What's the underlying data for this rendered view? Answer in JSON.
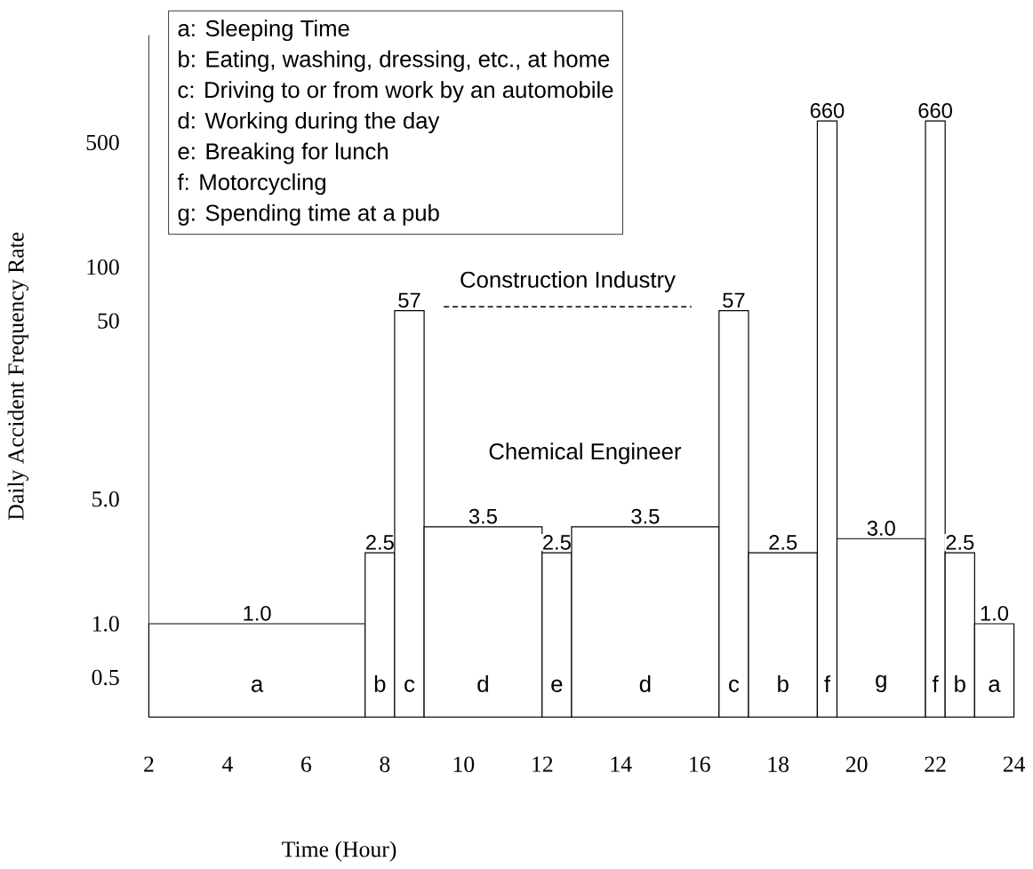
{
  "chart_data": {
    "type": "histogram",
    "xlabel": "Time (Hour)",
    "ylabel": "Daily Accident Frequency Rate",
    "categories": [
      "a",
      "b",
      "c",
      "d",
      "e",
      "d",
      "c",
      "b",
      "f",
      "g",
      "f",
      "b",
      "a"
    ],
    "bins": [
      2,
      7.5,
      8.25,
      9,
      12,
      12.75,
      16.5,
      17.25,
      19,
      19.5,
      21.75,
      22.25,
      23,
      24
    ],
    "values": [
      1.0,
      2.5,
      57,
      3.5,
      2.5,
      3.5,
      57,
      2.5,
      660,
      3.0,
      660,
      2.5,
      1.0
    ],
    "value_labels": [
      "1.0",
      "2.5",
      "57",
      "3.5",
      "2.5",
      "3.5",
      "57",
      "2.5",
      "660",
      "3.0",
      "660",
      "2.5",
      "1.0"
    ],
    "color": "#ffffff",
    "series": [
      {
        "type": "line",
        "name": "Construction Industry",
        "x": [
          9.5,
          15.8
        ],
        "values": [
          60,
          60
        ],
        "color": "#000000",
        "line_style": "dashed"
      }
    ],
    "log": "y",
    "xlim": [
      2,
      24
    ],
    "xticks": [
      2,
      4,
      6,
      8,
      10,
      12,
      14,
      16,
      18,
      20,
      22,
      24
    ],
    "ylim": [
      0.3,
      2000
    ],
    "yticks": [
      0.5,
      {
        "value": 1,
        "label": "1.0"
      },
      {
        "value": 5,
        "label": "5.0"
      },
      50,
      100,
      500
    ],
    "grid": false,
    "annotations": [
      "a: Sleeping Time",
      "b: Eating, washing, dressing, etc., at home",
      "c: Driving to or from work by an automobile",
      "d: Working during the day",
      "e: Breaking for lunch",
      "f: Motorcycling",
      "g: Spending time at a pub",
      "Chemical Engineer"
    ]
  }
}
